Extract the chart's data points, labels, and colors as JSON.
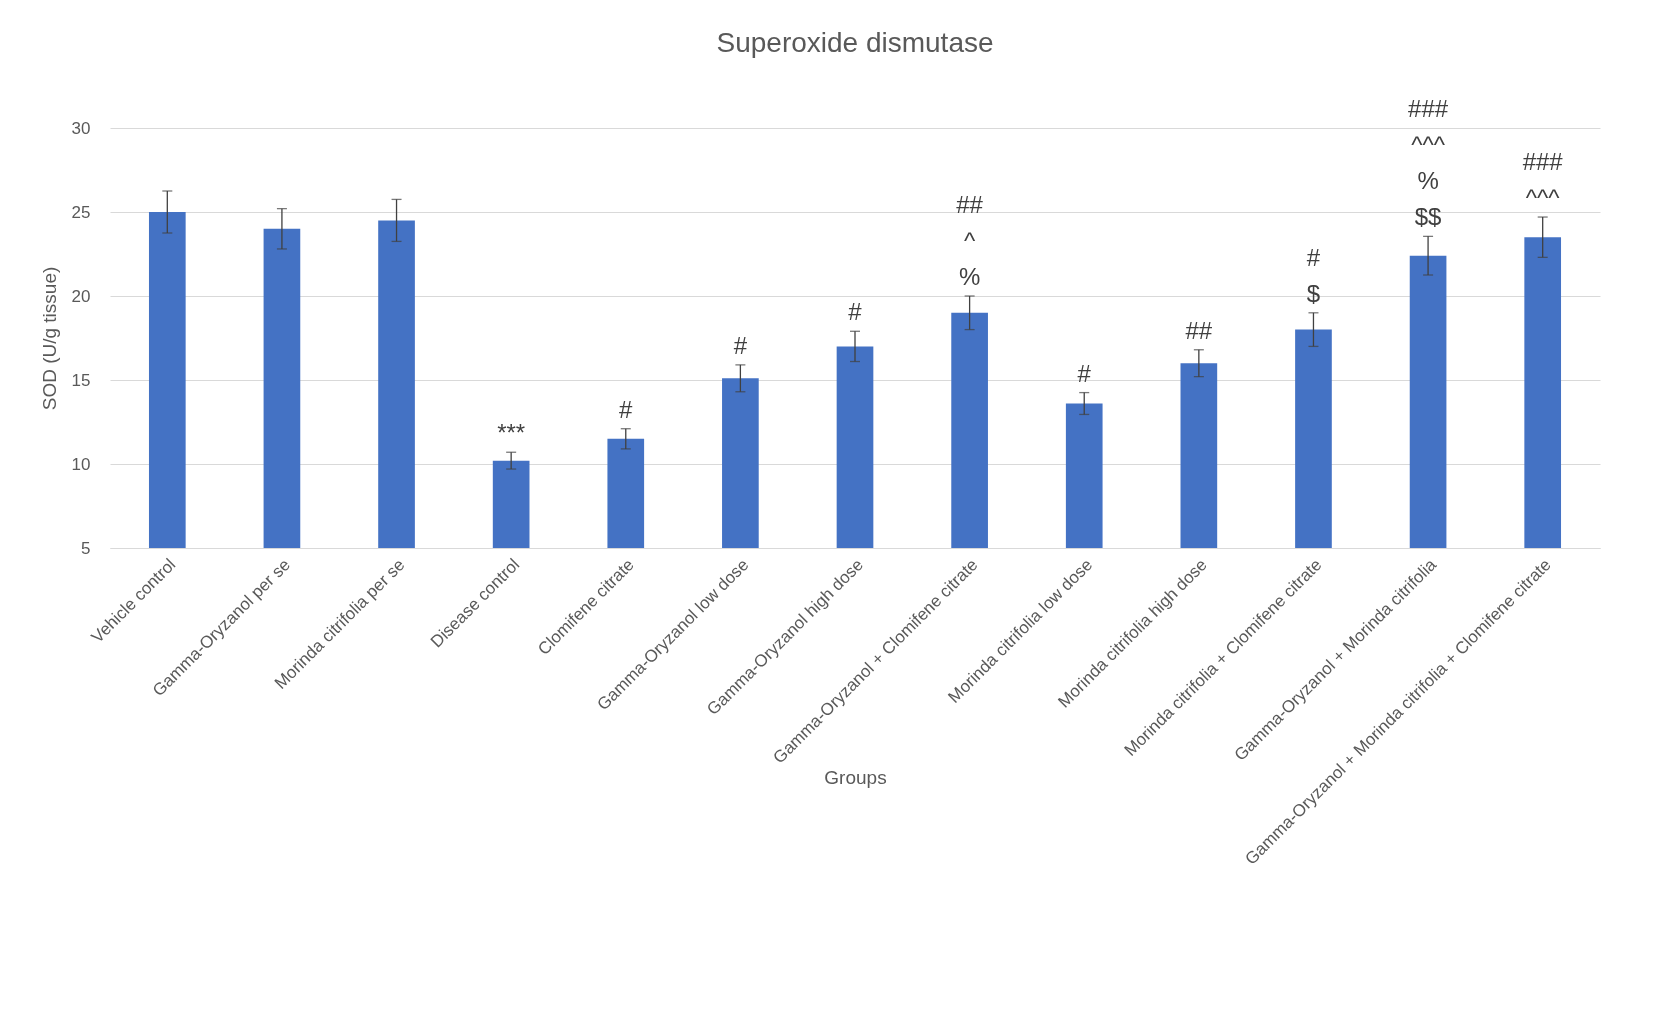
{
  "chart_data": {
    "type": "bar",
    "title": "Superoxide dismutase",
    "xlabel": "Groups",
    "ylabel": "SOD (U/g tissue)",
    "categories": [
      "Vehicle control",
      "Gamma-Oryzanol per se",
      "Morinda citrifolia per se",
      "Disease control",
      "Clomifene citrate",
      "Gamma-Oryzanol low dose",
      "Gamma-Oryzanol high dose",
      "Gamma-Oryzanol + Clomifene citrate",
      "Morinda citrifolia low dose",
      "Morinda citrifolia high dose",
      "Morinda citrifolia + Clomifene citrate",
      "Gamma-Oryzanol + Morinda citrifolia",
      "Gamma-Oryzanol + Morinda citrifolia + Clomifene citrate"
    ],
    "values": [
      25,
      24,
      24.5,
      10.2,
      11.5,
      15.1,
      17,
      19,
      13.6,
      16,
      18,
      22.4,
      23.5
    ],
    "errors": [
      1.25,
      1.2,
      1.25,
      0.5,
      0.6,
      0.8,
      0.9,
      1.0,
      0.65,
      0.8,
      1.0,
      1.15,
      1.2
    ],
    "color": "#4472c4",
    "ylim": [
      5,
      30
    ],
    "yticks": [
      5,
      10,
      15,
      20,
      25,
      30
    ],
    "grid": "y",
    "annotations": [
      {
        "text": "***",
        "x": "Disease control",
        "y": 10.2
      },
      {
        "text": "#",
        "x": "Clomifene citrate",
        "y": 11.5
      },
      {
        "text": "#",
        "x": "Gamma-Oryzanol low dose",
        "y": 15.1
      },
      {
        "text": "#",
        "x": "Gamma-Oryzanol high dose",
        "y": 17
      },
      {
        "text": "##\n^\n%",
        "x": "Gamma-Oryzanol + Clomifene citrate",
        "y": 19
      },
      {
        "text": "#",
        "x": "Morinda citrifolia low dose",
        "y": 13.6
      },
      {
        "text": "##",
        "x": "Morinda citrifolia high dose",
        "y": 16
      },
      {
        "text": "#\n$",
        "x": "Morinda citrifolia + Clomifene citrate",
        "y": 18
      },
      {
        "text": "###\n^^^\n%\n$$",
        "x": "Gamma-Oryzanol + Morinda citrifolia",
        "y": 22.4
      },
      {
        "text": "###\n^^^",
        "x": "Gamma-Oryzanol + Morinda citrifolia + Clomifene citrate",
        "y": 23.5
      }
    ]
  }
}
